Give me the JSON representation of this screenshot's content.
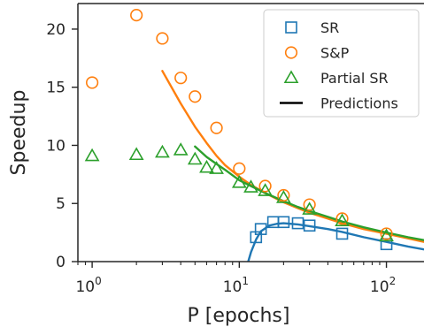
{
  "chart_data": {
    "type": "scatter",
    "xlabel": "P [epochs]",
    "ylabel": "Speedup",
    "xscale": "log",
    "xlim": [
      0.8,
      180
    ],
    "ylim": [
      0,
      22.2
    ],
    "xticks": [
      {
        "value": 1,
        "base": "10",
        "exp": "0"
      },
      {
        "value": 10,
        "base": "10",
        "exp": "1"
      },
      {
        "value": 100,
        "base": "10",
        "exp": "2"
      }
    ],
    "yticks": [
      0,
      5,
      10,
      15,
      20
    ],
    "grid": false,
    "legend_position": "top-right",
    "series": [
      {
        "name": "SR",
        "color": "#1f77b4",
        "marker": "square",
        "points": [
          [
            13,
            2.1
          ],
          [
            14,
            2.8
          ],
          [
            17,
            3.4
          ],
          [
            20,
            3.4
          ],
          [
            25,
            3.3
          ],
          [
            30,
            3.1
          ],
          [
            50,
            2.4
          ],
          [
            100,
            1.5
          ]
        ],
        "prediction": [
          [
            11.5,
            0.0
          ],
          [
            12,
            0.8
          ],
          [
            13,
            1.9
          ],
          [
            14,
            2.6
          ],
          [
            16,
            3.1
          ],
          [
            18,
            3.25
          ],
          [
            20,
            3.3
          ],
          [
            25,
            3.2
          ],
          [
            30,
            3.05
          ],
          [
            40,
            2.8
          ],
          [
            50,
            2.55
          ],
          [
            70,
            2.1
          ],
          [
            100,
            1.7
          ],
          [
            140,
            1.3
          ],
          [
            180,
            1.05
          ]
        ]
      },
      {
        "name": "S&P",
        "color": "#ff7f0e",
        "marker": "circle",
        "points": [
          [
            1,
            15.4
          ],
          [
            2,
            21.2
          ],
          [
            3,
            19.2
          ],
          [
            4,
            15.8
          ],
          [
            5,
            14.2
          ],
          [
            7,
            11.5
          ],
          [
            10,
            8.0
          ],
          [
            15,
            6.5
          ],
          [
            20,
            5.7
          ],
          [
            30,
            4.9
          ],
          [
            50,
            3.7
          ],
          [
            100,
            2.4
          ]
        ],
        "prediction": [
          [
            3,
            16.4
          ],
          [
            4,
            13.6
          ],
          [
            5,
            11.6
          ],
          [
            6,
            10.2
          ],
          [
            7,
            9.1
          ],
          [
            8,
            8.3
          ],
          [
            10,
            7.3
          ],
          [
            12,
            6.6
          ],
          [
            15,
            5.9
          ],
          [
            20,
            5.1
          ],
          [
            25,
            4.6
          ],
          [
            30,
            4.2
          ],
          [
            40,
            3.7
          ],
          [
            50,
            3.3
          ],
          [
            70,
            2.8
          ],
          [
            100,
            2.4
          ],
          [
            140,
            2.0
          ],
          [
            180,
            1.7
          ]
        ]
      },
      {
        "name": "Partial SR",
        "color": "#2ca02c",
        "marker": "triangle",
        "points": [
          [
            1,
            9.1
          ],
          [
            2,
            9.2
          ],
          [
            3,
            9.4
          ],
          [
            4,
            9.6
          ],
          [
            5,
            8.8
          ],
          [
            6,
            8.1
          ],
          [
            7,
            8.0
          ],
          [
            10,
            6.8
          ],
          [
            12,
            6.4
          ],
          [
            15,
            6.1
          ],
          [
            20,
            5.5
          ],
          [
            30,
            4.5
          ],
          [
            50,
            3.5
          ],
          [
            100,
            2.2
          ]
        ],
        "prediction": [
          [
            5,
            9.9
          ],
          [
            6,
            9.0
          ],
          [
            7,
            8.4
          ],
          [
            8,
            7.9
          ],
          [
            10,
            7.0
          ],
          [
            12,
            6.5
          ],
          [
            15,
            5.9
          ],
          [
            20,
            5.2
          ],
          [
            25,
            4.7
          ],
          [
            30,
            4.35
          ],
          [
            40,
            3.85
          ],
          [
            50,
            3.45
          ],
          [
            70,
            2.95
          ],
          [
            100,
            2.5
          ],
          [
            140,
            2.1
          ],
          [
            180,
            1.85
          ]
        ]
      }
    ],
    "legend": [
      {
        "label": "SR",
        "kind": "marker",
        "series": 0
      },
      {
        "label": "S&P",
        "kind": "marker",
        "series": 1
      },
      {
        "label": "Partial SR",
        "kind": "marker",
        "series": 2
      },
      {
        "label": "Predictions",
        "kind": "line",
        "color": "#000000"
      }
    ]
  }
}
